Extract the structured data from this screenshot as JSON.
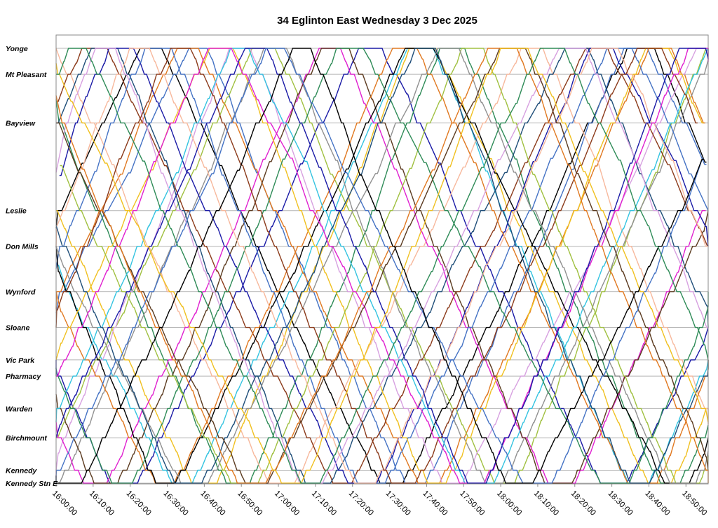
{
  "chart_data": {
    "type": "line",
    "title": "34 Eglinton East Wednesday 3 Dec 2025",
    "xlabel": "",
    "ylabel": "",
    "x_axis": {
      "min": "16:00:00",
      "max": "18:56:00",
      "ticks": [
        "16:00:00",
        "16:10:00",
        "16:20:00",
        "16:30:00",
        "16:40:00",
        "16:50:00",
        "17:00:00",
        "17:10:00",
        "17:20:00",
        "17:30:00",
        "17:40:00",
        "17:50:00",
        "18:00:00",
        "18:10:00",
        "18:20:00",
        "18:30:00",
        "18:40:00",
        "18:50:00"
      ]
    },
    "stops": [
      {
        "name": "Yonge",
        "km": 0
      },
      {
        "name": "Mt Pleasant",
        "km": 0.8
      },
      {
        "name": "Bayview",
        "km": 2.3
      },
      {
        "name": "Leslie",
        "km": 5.0
      },
      {
        "name": "Don Mills",
        "km": 6.1
      },
      {
        "name": "Wynford",
        "km": 7.5
      },
      {
        "name": "Sloane",
        "km": 8.6
      },
      {
        "name": "Vic Park",
        "km": 9.6
      },
      {
        "name": "Pharmacy",
        "km": 10.1
      },
      {
        "name": "Warden",
        "km": 11.1
      },
      {
        "name": "Birchmount",
        "km": 12.0
      },
      {
        "name": "Kennedy",
        "km": 13.0
      },
      {
        "name": "Kennedy Stn E",
        "km": 13.4
      }
    ],
    "grid": true,
    "legend": "none",
    "series_count": 36,
    "trip_summary": "36 vehicles shuttling between Yonge and Kennedy Stn E, one-way trip roughly 50 minutes, headways about 5 minutes",
    "series": [
      {
        "color": "#000000",
        "phase": 4
      },
      {
        "color": "#1a1aa6",
        "phase": 9
      },
      {
        "color": "#4472c4",
        "phase": 14
      },
      {
        "color": "#33c3e0",
        "phase": 18
      },
      {
        "color": "#e07820",
        "phase": 23
      },
      {
        "color": "#f0c020",
        "phase": 27
      },
      {
        "color": "#a0c040",
        "phase": 32
      },
      {
        "color": "#2e8b57",
        "phase": 36
      },
      {
        "color": "#d7a0e0",
        "phase": 41
      },
      {
        "color": "#f7b89c",
        "phase": 45
      },
      {
        "color": "#909090",
        "phase": 50
      },
      {
        "color": "#8b3a1a",
        "phase": 54
      },
      {
        "color": "#e020d0",
        "phase": 59
      },
      {
        "color": "#1f4e79",
        "phase": 63
      },
      {
        "color": "#5b3a1f",
        "phase": 68
      },
      {
        "color": "#1a1aa6",
        "phase": 72
      },
      {
        "color": "#e07820",
        "phase": 77
      },
      {
        "color": "#4472c4",
        "phase": 81
      },
      {
        "color": "#000000",
        "phase": 86
      },
      {
        "color": "#f0c020",
        "phase": 90
      },
      {
        "color": "#a0c040",
        "phase": 95
      },
      {
        "color": "#33c3e0",
        "phase": 99
      },
      {
        "color": "#d7a0e0",
        "phase": 2
      },
      {
        "color": "#2e8b57",
        "phase": 7
      },
      {
        "color": "#f7b89c",
        "phase": 11
      },
      {
        "color": "#909090",
        "phase": 16
      },
      {
        "color": "#8b3a1a",
        "phase": 21
      },
      {
        "color": "#1f4e79",
        "phase": 25
      },
      {
        "color": "#e020d0",
        "phase": 30
      },
      {
        "color": "#5b3a1f",
        "phase": 34
      },
      {
        "color": "#1a1aa6",
        "phase": 39
      },
      {
        "color": "#e07820",
        "phase": 43
      },
      {
        "color": "#4472c4",
        "phase": 48
      },
      {
        "color": "#f0c020",
        "phase": 52
      },
      {
        "color": "#000000",
        "phase": 57
      },
      {
        "color": "#2e8b57",
        "phase": 61
      }
    ]
  }
}
